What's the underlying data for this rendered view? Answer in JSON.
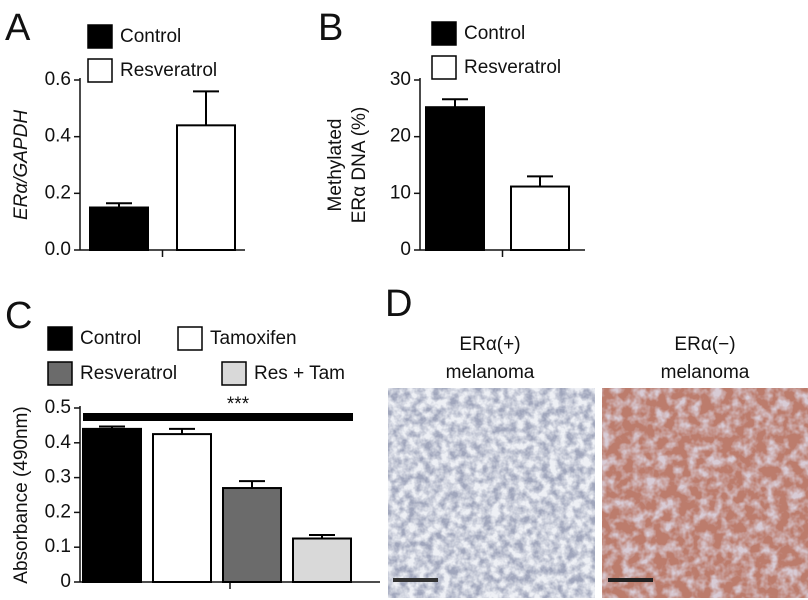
{
  "chart_data": [
    {
      "type": "bar",
      "panel": "A",
      "ylabel": "ERα/GAPDH",
      "categories": [
        null
      ],
      "series": [
        {
          "name": "Control",
          "color": "#000000",
          "values": [
            0.15
          ],
          "errors": [
            0.015
          ]
        },
        {
          "name": "Resveratrol",
          "color": "#ffffff",
          "values": [
            0.44
          ],
          "errors": [
            0.12
          ]
        }
      ],
      "ylim": [
        0,
        0.6
      ],
      "yticks": [
        {
          "value": 0,
          "label": "0.0"
        },
        0.2,
        0.4,
        0.6
      ]
    },
    {
      "type": "bar",
      "panel": "B",
      "ylabel": [
        "Methylated",
        "ERα DNA (%)"
      ],
      "categories": [
        null
      ],
      "series": [
        {
          "name": "Control",
          "color": "#000000",
          "values": [
            25.2
          ],
          "errors": [
            1.4
          ]
        },
        {
          "name": "Resveratrol",
          "color": "#ffffff",
          "values": [
            11.2
          ],
          "errors": [
            1.8
          ]
        }
      ],
      "ylim": [
        0,
        30
      ],
      "yticks": [
        0,
        10,
        20,
        30
      ]
    },
    {
      "type": "bar",
      "panel": "C",
      "ylabel": "Absorbance (490nm)",
      "categories": [
        null
      ],
      "series": [
        {
          "name": "Control",
          "color": "#000000",
          "values": [
            0.44
          ],
          "errors": [
            0.007
          ]
        },
        {
          "name": "Tamoxifen",
          "color": "#ffffff",
          "values": [
            0.425
          ],
          "errors": [
            0.015
          ]
        },
        {
          "name": "Resveratrol",
          "color": "#6b6b6b",
          "values": [
            0.27
          ],
          "errors": [
            0.02
          ]
        },
        {
          "name": "Res + Tam",
          "color": "#d9d9d9",
          "values": [
            0.125
          ],
          "errors": [
            0.01
          ]
        }
      ],
      "ylim": [
        0,
        0.5
      ],
      "yticks": [
        0,
        0.1,
        0.2,
        0.3,
        0.4,
        0.5
      ],
      "annotation": "***"
    }
  ],
  "panel_d": {
    "panel": "D",
    "images": [
      {
        "label": [
          "ERα(+)",
          "melanoma"
        ]
      },
      {
        "label": [
          "ERα(−)",
          "melanoma"
        ]
      }
    ]
  }
}
